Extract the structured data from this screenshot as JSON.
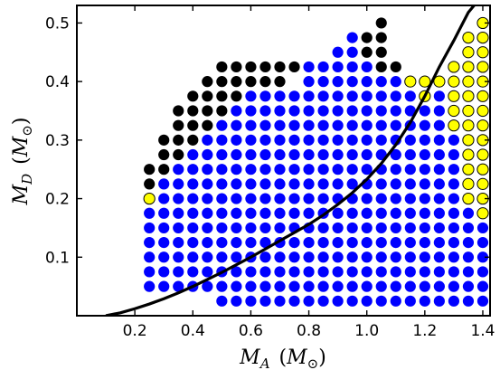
{
  "chart_data": {
    "type": "scatter",
    "title": "",
    "xlabel": "M_A (M_⊙)",
    "ylabel": "M_D (M_⊙)",
    "xlabel_parts": {
      "var": "M",
      "sub": "A",
      "open": "(",
      "unit": "M",
      "unit_sub": "⊙",
      "close": ")"
    },
    "ylabel_parts": {
      "var": "M",
      "sub": "D",
      "open": "(",
      "unit": "M",
      "unit_sub": "⊙",
      "close": ")"
    },
    "xlim": [
      0.0,
      1.425
    ],
    "ylim": [
      0.0,
      0.53
    ],
    "xticks": [
      0.2,
      0.4,
      0.6,
      0.8,
      1.0,
      1.2,
      1.4
    ],
    "xtick_labels": [
      "0.2",
      "0.4",
      "0.6",
      "0.8",
      "1.0",
      "1.2",
      "1.4"
    ],
    "yticks": [
      0.1,
      0.2,
      0.3,
      0.4,
      0.5
    ],
    "ytick_labels": [
      "0.1",
      "0.2",
      "0.3",
      "0.4",
      "0.5"
    ],
    "grid": false,
    "legend": "none",
    "colors": {
      "blue": "#0000ff",
      "black": "#000000",
      "yellow": "#ffff00",
      "curve": "#000000"
    },
    "x_step": 0.05,
    "y_step": 0.025,
    "series": [
      {
        "color": "blue",
        "columns": [
          {
            "x": 0.25,
            "y": [
              0.05,
              0.075,
              0.1,
              0.125,
              0.15,
              0.175
            ]
          },
          {
            "x": 0.3,
            "y": [
              0.05,
              0.075,
              0.1,
              0.125,
              0.15,
              0.175,
              0.2,
              0.225
            ]
          },
          {
            "x": 0.35,
            "y": [
              0.05,
              0.075,
              0.1,
              0.125,
              0.15,
              0.175,
              0.2,
              0.225,
              0.25
            ]
          },
          {
            "x": 0.4,
            "y": [
              0.05,
              0.075,
              0.1,
              0.125,
              0.15,
              0.175,
              0.2,
              0.225,
              0.25,
              0.275
            ]
          },
          {
            "x": 0.45,
            "y": [
              0.05,
              0.075,
              0.1,
              0.125,
              0.15,
              0.175,
              0.2,
              0.225,
              0.25,
              0.275,
              0.3
            ]
          },
          {
            "x": 0.5,
            "y": [
              0.025,
              0.05,
              0.075,
              0.1,
              0.125,
              0.15,
              0.175,
              0.2,
              0.225,
              0.25,
              0.275,
              0.3,
              0.325
            ]
          },
          {
            "x": 0.55,
            "y": [
              0.025,
              0.05,
              0.075,
              0.1,
              0.125,
              0.15,
              0.175,
              0.2,
              0.225,
              0.25,
              0.275,
              0.3,
              0.325,
              0.35
            ]
          },
          {
            "x": 0.6,
            "y": [
              0.025,
              0.05,
              0.075,
              0.1,
              0.125,
              0.15,
              0.175,
              0.2,
              0.225,
              0.25,
              0.275,
              0.3,
              0.325,
              0.35,
              0.375
            ]
          },
          {
            "x": 0.65,
            "y": [
              0.025,
              0.05,
              0.075,
              0.1,
              0.125,
              0.15,
              0.175,
              0.2,
              0.225,
              0.25,
              0.275,
              0.3,
              0.325,
              0.35,
              0.375
            ]
          },
          {
            "x": 0.7,
            "y": [
              0.025,
              0.05,
              0.075,
              0.1,
              0.125,
              0.15,
              0.175,
              0.2,
              0.225,
              0.25,
              0.275,
              0.3,
              0.325,
              0.35,
              0.375
            ]
          },
          {
            "x": 0.75,
            "y": [
              0.025,
              0.05,
              0.075,
              0.1,
              0.125,
              0.15,
              0.175,
              0.2,
              0.225,
              0.25,
              0.275,
              0.3,
              0.325,
              0.35,
              0.375
            ]
          },
          {
            "x": 0.8,
            "y": [
              0.025,
              0.05,
              0.075,
              0.1,
              0.125,
              0.15,
              0.175,
              0.2,
              0.225,
              0.25,
              0.275,
              0.3,
              0.325,
              0.35,
              0.375,
              0.4,
              0.425
            ]
          },
          {
            "x": 0.85,
            "y": [
              0.025,
              0.05,
              0.075,
              0.1,
              0.125,
              0.15,
              0.175,
              0.2,
              0.225,
              0.25,
              0.275,
              0.3,
              0.325,
              0.35,
              0.375,
              0.4,
              0.425
            ]
          },
          {
            "x": 0.9,
            "y": [
              0.025,
              0.05,
              0.075,
              0.1,
              0.125,
              0.15,
              0.175,
              0.2,
              0.225,
              0.25,
              0.275,
              0.3,
              0.325,
              0.35,
              0.375,
              0.4,
              0.425,
              0.45
            ]
          },
          {
            "x": 0.95,
            "y": [
              0.025,
              0.05,
              0.075,
              0.1,
              0.125,
              0.15,
              0.175,
              0.2,
              0.225,
              0.25,
              0.275,
              0.3,
              0.325,
              0.35,
              0.375,
              0.4,
              0.425,
              0.45,
              0.475
            ]
          },
          {
            "x": 1.0,
            "y": [
              0.025,
              0.05,
              0.075,
              0.1,
              0.125,
              0.15,
              0.175,
              0.2,
              0.225,
              0.25,
              0.275,
              0.3,
              0.325,
              0.35,
              0.375,
              0.4,
              0.425
            ]
          },
          {
            "x": 1.05,
            "y": [
              0.025,
              0.05,
              0.075,
              0.1,
              0.125,
              0.15,
              0.175,
              0.2,
              0.225,
              0.25,
              0.275,
              0.3,
              0.325,
              0.35,
              0.375,
              0.4
            ]
          },
          {
            "x": 1.1,
            "y": [
              0.025,
              0.05,
              0.075,
              0.1,
              0.125,
              0.15,
              0.175,
              0.2,
              0.225,
              0.25,
              0.275,
              0.3,
              0.325,
              0.35,
              0.375,
              0.4
            ]
          },
          {
            "x": 1.15,
            "y": [
              0.025,
              0.05,
              0.075,
              0.1,
              0.125,
              0.15,
              0.175,
              0.2,
              0.225,
              0.25,
              0.275,
              0.3,
              0.325,
              0.35,
              0.375
            ]
          },
          {
            "x": 1.2,
            "y": [
              0.025,
              0.05,
              0.075,
              0.1,
              0.125,
              0.15,
              0.175,
              0.2,
              0.225,
              0.25,
              0.275,
              0.3,
              0.325,
              0.35
            ]
          },
          {
            "x": 1.25,
            "y": [
              0.025,
              0.05,
              0.075,
              0.1,
              0.125,
              0.15,
              0.175,
              0.2,
              0.225,
              0.25,
              0.275,
              0.3,
              0.325,
              0.35,
              0.375
            ]
          },
          {
            "x": 1.3,
            "y": [
              0.025,
              0.05,
              0.075,
              0.1,
              0.125,
              0.15,
              0.175,
              0.2,
              0.225,
              0.25,
              0.275,
              0.3
            ]
          },
          {
            "x": 1.35,
            "y": [
              0.025,
              0.05,
              0.075,
              0.1,
              0.125,
              0.15,
              0.175
            ]
          },
          {
            "x": 1.4,
            "y": [
              0.025,
              0.05,
              0.075,
              0.1,
              0.125,
              0.15
            ]
          }
        ]
      },
      {
        "color": "black",
        "columns": [
          {
            "x": 0.25,
            "y": [
              0.225,
              0.25
            ]
          },
          {
            "x": 0.3,
            "y": [
              0.25,
              0.275,
              0.3
            ]
          },
          {
            "x": 0.35,
            "y": [
              0.275,
              0.3,
              0.325,
              0.35
            ]
          },
          {
            "x": 0.4,
            "y": [
              0.3,
              0.325,
              0.35,
              0.375
            ]
          },
          {
            "x": 0.45,
            "y": [
              0.325,
              0.35,
              0.375,
              0.4
            ]
          },
          {
            "x": 0.5,
            "y": [
              0.35,
              0.375,
              0.4,
              0.425
            ]
          },
          {
            "x": 0.55,
            "y": [
              0.375,
              0.4,
              0.425
            ]
          },
          {
            "x": 0.6,
            "y": [
              0.4,
              0.425
            ]
          },
          {
            "x": 0.65,
            "y": [
              0.4,
              0.425
            ]
          },
          {
            "x": 0.7,
            "y": [
              0.4,
              0.425
            ]
          },
          {
            "x": 0.75,
            "y": [
              0.425
            ]
          },
          {
            "x": 1.0,
            "y": [
              0.45,
              0.475
            ]
          },
          {
            "x": 1.05,
            "y": [
              0.425,
              0.45,
              0.475,
              0.5
            ]
          },
          {
            "x": 1.1,
            "y": [
              0.425
            ]
          },
          {
            "x": 1.25,
            "y": [
              0.4
            ]
          }
        ]
      },
      {
        "color": "yellow",
        "columns": [
          {
            "x": 0.25,
            "y": [
              0.2
            ]
          },
          {
            "x": 1.15,
            "y": [
              0.4
            ]
          },
          {
            "x": 1.2,
            "y": [
              0.375,
              0.4
            ]
          },
          {
            "x": 1.25,
            "y": [
              0.4
            ]
          },
          {
            "x": 1.3,
            "y": [
              0.325,
              0.35,
              0.375,
              0.4,
              0.425
            ]
          },
          {
            "x": 1.35,
            "y": [
              0.2,
              0.225,
              0.25,
              0.275,
              0.3,
              0.325,
              0.35,
              0.375,
              0.4,
              0.425,
              0.45,
              0.475
            ]
          },
          {
            "x": 1.4,
            "y": [
              0.175,
              0.2,
              0.225,
              0.25,
              0.275,
              0.3,
              0.325,
              0.35,
              0.375,
              0.4,
              0.425,
              0.45,
              0.475,
              0.5
            ]
          }
        ]
      }
    ],
    "curve": {
      "color": "curve",
      "x": [
        0.1,
        0.15,
        0.2,
        0.25,
        0.3,
        0.35,
        0.4,
        0.45,
        0.5,
        0.55,
        0.6,
        0.65,
        0.7,
        0.75,
        0.8,
        0.85,
        0.9,
        0.95,
        1.0,
        1.05,
        1.1,
        1.15,
        1.2,
        1.25,
        1.3,
        1.35,
        1.37
      ],
      "y": [
        0.0,
        0.005,
        0.012,
        0.02,
        0.029,
        0.039,
        0.05,
        0.062,
        0.074,
        0.087,
        0.1,
        0.114,
        0.128,
        0.142,
        0.156,
        0.172,
        0.19,
        0.21,
        0.233,
        0.26,
        0.292,
        0.33,
        0.375,
        0.425,
        0.47,
        0.518,
        0.53
      ]
    }
  }
}
